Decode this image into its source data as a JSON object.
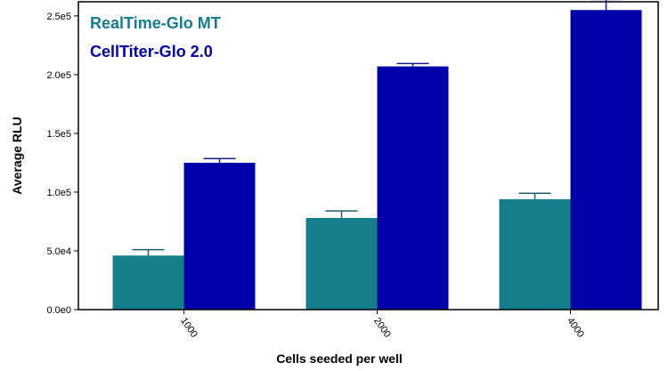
{
  "chart_data": {
    "type": "bar",
    "title": "",
    "xlabel": "Cells seeded per well",
    "ylabel": "Average RLU",
    "categories": [
      "1000",
      "2000",
      "4000"
    ],
    "ylim": [
      0,
      262000
    ],
    "yticks": [
      {
        "value": 0,
        "label": "0.0e0"
      },
      {
        "value": 50000,
        "label": "5.0e4"
      },
      {
        "value": 100000,
        "label": "1.0e5"
      },
      {
        "value": 150000,
        "label": "1.5e5"
      },
      {
        "value": 200000,
        "label": "2.0e5"
      },
      {
        "value": 250000,
        "label": "2.5e5"
      }
    ],
    "series": [
      {
        "name": "RealTime-Glo MT",
        "color": "#137e8c",
        "values": [
          46000,
          78000,
          94000
        ],
        "errors": [
          5000,
          6000,
          5000
        ]
      },
      {
        "name": "CellTiter-Glo 2.0",
        "color": "#0000aa",
        "values": [
          125000,
          207000,
          255000
        ],
        "errors": [
          3500,
          2500,
          9000
        ]
      }
    ],
    "legend_position": "top-left",
    "grid": false
  }
}
